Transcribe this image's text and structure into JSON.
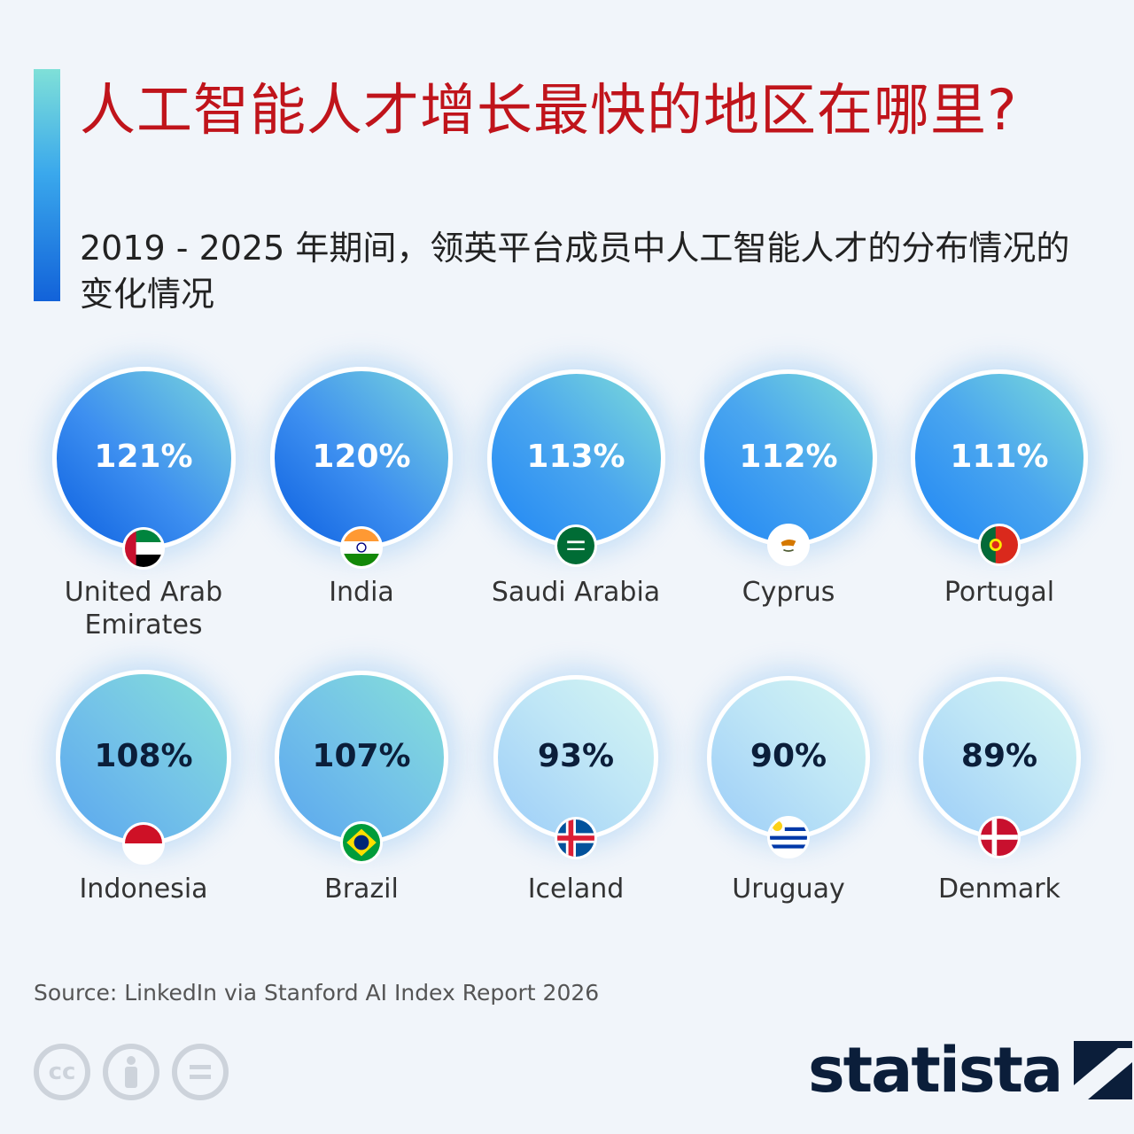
{
  "header": {
    "title": "人工智能人才增长最快的地区在哪里?",
    "subtitle": "2019 - 2025 年期间，领英平台成员中人工智能人才的分布情况的变化情况"
  },
  "chart_data": {
    "type": "bubble",
    "title": "人工智能人才增长最快的地区在哪里?",
    "subtitle": "2019 - 2025 年期间，领英平台成员中人工智能人才的分布情况的变化情况",
    "unit": "%",
    "points": [
      {
        "country": "United Arab Emirates",
        "value": 121,
        "label": "121%",
        "flag": "uae-flag-icon"
      },
      {
        "country": "India",
        "value": 120,
        "label": "120%",
        "flag": "india-flag-icon"
      },
      {
        "country": "Saudi Arabia",
        "value": 113,
        "label": "113%",
        "flag": "saudi-arabia-flag-icon"
      },
      {
        "country": "Cyprus",
        "value": 112,
        "label": "112%",
        "flag": "cyprus-flag-icon"
      },
      {
        "country": "Portugal",
        "value": 111,
        "label": "111%",
        "flag": "portugal-flag-icon"
      },
      {
        "country": "Indonesia",
        "value": 108,
        "label": "108%",
        "flag": "indonesia-flag-icon"
      },
      {
        "country": "Brazil",
        "value": 107,
        "label": "107%",
        "flag": "brazil-flag-icon"
      },
      {
        "country": "Iceland",
        "value": 93,
        "label": "93%",
        "flag": "iceland-flag-icon"
      },
      {
        "country": "Uruguay",
        "value": 90,
        "label": "90%",
        "flag": "uruguay-flag-icon"
      },
      {
        "country": "Denmark",
        "value": 89,
        "label": "89%",
        "flag": "denmark-flag-icon"
      }
    ]
  },
  "footer": {
    "source": "Source: LinkedIn via Stanford AI Index Report 2026",
    "license_icons": [
      "cc-icon",
      "attribution-icon",
      "no-derivatives-icon"
    ],
    "cc_text": "cc",
    "brand": "statista"
  },
  "colors": {
    "title": "#c0141b",
    "accent_top": "#7fe0d8",
    "accent_bottom": "#1262d9",
    "brand": "#0b1e3a"
  }
}
